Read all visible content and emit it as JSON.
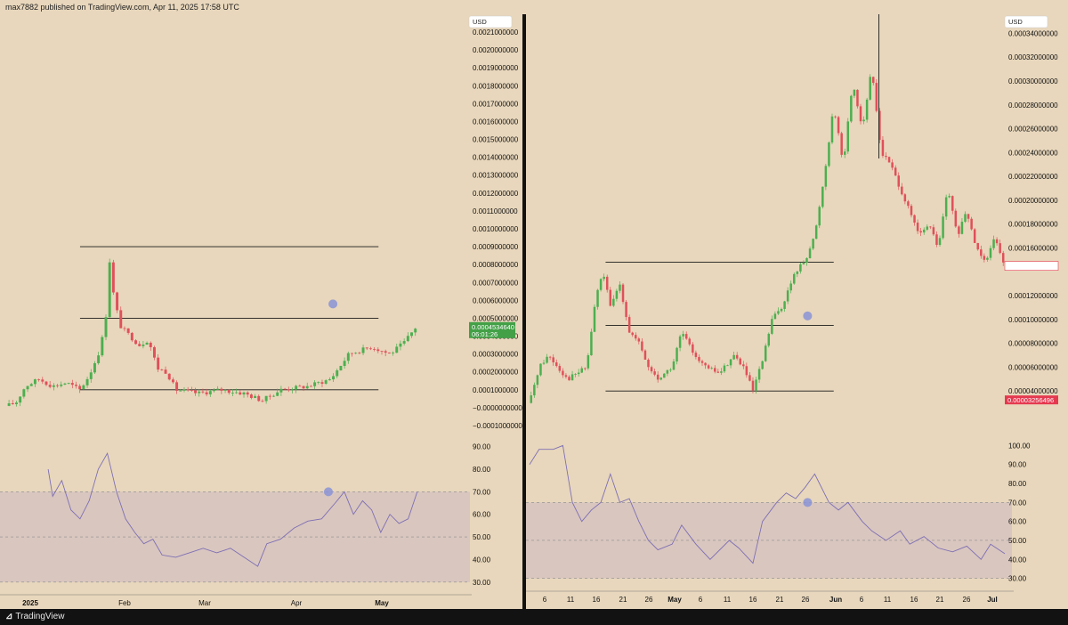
{
  "header": {
    "publisher": "max7882 published on TradingView.com, Apr 11, 2025 17:58 UTC"
  },
  "footer": {
    "brand": "TradingView",
    "brand_icon": "tradingview-logo-icon"
  },
  "colors": {
    "background": "#e8d7bc",
    "up": "#4caf50",
    "down": "#e0505a",
    "rsi_line": "#7e6fb4",
    "rsi_band": "#d7c4bf",
    "level_line": "#1a1a1a",
    "marker": "#8a93d6",
    "last_price_left": "#43a047",
    "last_price_right": "#e53950"
  },
  "chart_data": [
    {
      "type": "candlestick",
      "panel": "left",
      "currency_label": "USD",
      "price_ticks": [
        "0.0021000000",
        "0.0020000000",
        "0.0019000000",
        "0.0018000000",
        "0.0017000000",
        "0.0016000000",
        "0.0015000000",
        "0.0014000000",
        "0.0013000000",
        "0.0012000000",
        "0.0011000000",
        "0.0010000000",
        "0.0009000000",
        "0.0008000000",
        "0.0007000000",
        "0.0006000000",
        "0.0005000000",
        "0.0004000000",
        "0.0003000000",
        "0.0002000000",
        "0.0001000000",
        "−0.0000000000",
        "−0.0001000000"
      ],
      "y_range": [
        -0.0001,
        0.0021
      ],
      "x_ticks": [
        "2025",
        "Feb",
        "Mar",
        "Apr",
        "May"
      ],
      "last_price": {
        "value": "0.0004534640",
        "countdown": "06:01:26",
        "numeric": 0.000453464
      },
      "horizontal_levels": [
        0.0009,
        0.0005,
        0.0001
      ],
      "marker": {
        "price": 0.00058
      },
      "price_path": [
        {
          "t": 0,
          "p": 1e-05
        },
        {
          "t": 0.02,
          "p": 3e-05
        },
        {
          "t": 0.04,
          "p": 0.00012
        },
        {
          "t": 0.07,
          "p": 0.00016
        },
        {
          "t": 0.1,
          "p": 0.00012
        },
        {
          "t": 0.13,
          "p": 0.00014
        },
        {
          "t": 0.16,
          "p": 0.0001
        },
        {
          "t": 0.18,
          "p": 0.00018
        },
        {
          "t": 0.2,
          "p": 0.0003
        },
        {
          "t": 0.215,
          "p": 0.00045
        },
        {
          "t": 0.225,
          "p": 0.00082
        },
        {
          "t": 0.235,
          "p": 0.0006
        },
        {
          "t": 0.25,
          "p": 0.00045
        },
        {
          "t": 0.27,
          "p": 0.0004
        },
        {
          "t": 0.29,
          "p": 0.00035
        },
        {
          "t": 0.31,
          "p": 0.00038
        },
        {
          "t": 0.33,
          "p": 0.00022
        },
        {
          "t": 0.35,
          "p": 0.0002
        },
        {
          "t": 0.37,
          "p": 0.0001
        },
        {
          "t": 0.42,
          "p": 8e-05
        },
        {
          "t": 0.47,
          "p": 0.0001
        },
        {
          "t": 0.52,
          "p": 8e-05
        },
        {
          "t": 0.56,
          "p": 4e-05
        },
        {
          "t": 0.6,
          "p": 0.0001
        },
        {
          "t": 0.66,
          "p": 0.00012
        },
        {
          "t": 0.71,
          "p": 0.00016
        },
        {
          "t": 0.75,
          "p": 0.0003
        },
        {
          "t": 0.8,
          "p": 0.00034
        },
        {
          "t": 0.84,
          "p": 0.0003
        },
        {
          "t": 0.87,
          "p": 0.00036
        },
        {
          "t": 0.9,
          "p": 0.00046
        }
      ],
      "candle_count": 110,
      "candle_span": [
        0,
        0.9
      ],
      "rsi": {
        "ticks": [
          "90.00",
          "80.00",
          "70.00",
          "60.00",
          "50.00",
          "40.00",
          "30.00"
        ],
        "range": [
          26,
          93
        ],
        "band": [
          70,
          30
        ],
        "mid": 50,
        "marker_value": 70,
        "path": [
          {
            "t": 0.09,
            "v": 80
          },
          {
            "t": 0.1,
            "v": 68
          },
          {
            "t": 0.12,
            "v": 75
          },
          {
            "t": 0.14,
            "v": 62
          },
          {
            "t": 0.16,
            "v": 58
          },
          {
            "t": 0.18,
            "v": 66
          },
          {
            "t": 0.2,
            "v": 80
          },
          {
            "t": 0.22,
            "v": 87
          },
          {
            "t": 0.24,
            "v": 70
          },
          {
            "t": 0.26,
            "v": 58
          },
          {
            "t": 0.28,
            "v": 52
          },
          {
            "t": 0.3,
            "v": 47
          },
          {
            "t": 0.32,
            "v": 49
          },
          {
            "t": 0.34,
            "v": 42
          },
          {
            "t": 0.37,
            "v": 41
          },
          {
            "t": 0.4,
            "v": 43
          },
          {
            "t": 0.43,
            "v": 45
          },
          {
            "t": 0.46,
            "v": 43
          },
          {
            "t": 0.49,
            "v": 45
          },
          {
            "t": 0.52,
            "v": 41
          },
          {
            "t": 0.55,
            "v": 37
          },
          {
            "t": 0.57,
            "v": 47
          },
          {
            "t": 0.6,
            "v": 49
          },
          {
            "t": 0.63,
            "v": 54
          },
          {
            "t": 0.66,
            "v": 57
          },
          {
            "t": 0.69,
            "v": 58
          },
          {
            "t": 0.72,
            "v": 65
          },
          {
            "t": 0.74,
            "v": 70
          },
          {
            "t": 0.76,
            "v": 60
          },
          {
            "t": 0.78,
            "v": 66
          },
          {
            "t": 0.8,
            "v": 62
          },
          {
            "t": 0.82,
            "v": 52
          },
          {
            "t": 0.84,
            "v": 60
          },
          {
            "t": 0.86,
            "v": 56
          },
          {
            "t": 0.88,
            "v": 58
          },
          {
            "t": 0.9,
            "v": 70
          }
        ]
      }
    },
    {
      "type": "candlestick",
      "panel": "right",
      "currency_label": "USD",
      "price_ticks": [
        "0.00034000000",
        "0.00032000000",
        "0.00030000000",
        "0.00028000000",
        "0.00026000000",
        "0.00024000000",
        "0.00022000000",
        "0.00020000000",
        "0.00018000000",
        "0.00016000000",
        "0.00014494049",
        "0.00012000000",
        "0.00010000000",
        "0.00008000000",
        "0.00006000000",
        "0.00004000000",
        "0.00003256496"
      ],
      "y_range": [
        2e-05,
        0.00035
      ],
      "x_ticks": [
        "6",
        "11",
        "16",
        "21",
        "26",
        "May",
        "6",
        "11",
        "16",
        "21",
        "26",
        "Jun",
        "6",
        "11",
        "16",
        "21",
        "26",
        "Jul"
      ],
      "last_price": {
        "value": "0.00014494049",
        "numeric": 0.00014494049
      },
      "second_price": {
        "value": "0.00003256496",
        "numeric": 3.256496e-05
      },
      "horizontal_levels": [
        0.000148,
        9.5e-05,
        4e-05
      ],
      "marker": {
        "price": 0.000103
      },
      "price_path": [
        {
          "t": 0,
          "p": 3e-05
        },
        {
          "t": 0.02,
          "p": 6e-05
        },
        {
          "t": 0.04,
          "p": 7e-05
        },
        {
          "t": 0.06,
          "p": 6e-05
        },
        {
          "t": 0.08,
          "p": 5e-05
        },
        {
          "t": 0.1,
          "p": 5.5e-05
        },
        {
          "t": 0.12,
          "p": 6e-05
        },
        {
          "t": 0.14,
          "p": 0.00012
        },
        {
          "t": 0.155,
          "p": 0.00014
        },
        {
          "t": 0.17,
          "p": 0.00011
        },
        {
          "t": 0.19,
          "p": 0.00013
        },
        {
          "t": 0.21,
          "p": 9e-05
        },
        {
          "t": 0.23,
          "p": 8e-05
        },
        {
          "t": 0.25,
          "p": 6e-05
        },
        {
          "t": 0.27,
          "p": 5e-05
        },
        {
          "t": 0.3,
          "p": 6e-05
        },
        {
          "t": 0.32,
          "p": 9e-05
        },
        {
          "t": 0.34,
          "p": 7.5e-05
        },
        {
          "t": 0.37,
          "p": 6e-05
        },
        {
          "t": 0.4,
          "p": 5.5e-05
        },
        {
          "t": 0.43,
          "p": 7e-05
        },
        {
          "t": 0.45,
          "p": 6e-05
        },
        {
          "t": 0.47,
          "p": 4e-05
        },
        {
          "t": 0.49,
          "p": 6.5e-05
        },
        {
          "t": 0.51,
          "p": 0.0001
        },
        {
          "t": 0.53,
          "p": 0.00011
        },
        {
          "t": 0.56,
          "p": 0.00014
        },
        {
          "t": 0.58,
          "p": 0.00015
        },
        {
          "t": 0.6,
          "p": 0.00017
        },
        {
          "t": 0.62,
          "p": 0.00022
        },
        {
          "t": 0.64,
          "p": 0.00028
        },
        {
          "t": 0.66,
          "p": 0.00023
        },
        {
          "t": 0.68,
          "p": 0.0003
        },
        {
          "t": 0.7,
          "p": 0.00026
        },
        {
          "t": 0.72,
          "p": 0.00031
        },
        {
          "t": 0.74,
          "p": 0.00024
        },
        {
          "t": 0.76,
          "p": 0.00023
        },
        {
          "t": 0.78,
          "p": 0.00021
        },
        {
          "t": 0.8,
          "p": 0.00019
        },
        {
          "t": 0.82,
          "p": 0.00017
        },
        {
          "t": 0.84,
          "p": 0.00018
        },
        {
          "t": 0.86,
          "p": 0.00016
        },
        {
          "t": 0.88,
          "p": 0.00021
        },
        {
          "t": 0.9,
          "p": 0.00017
        },
        {
          "t": 0.92,
          "p": 0.00019
        },
        {
          "t": 0.94,
          "p": 0.00016
        },
        {
          "t": 0.96,
          "p": 0.00015
        },
        {
          "t": 0.98,
          "p": 0.00017
        },
        {
          "t": 1.0,
          "p": 0.000145
        }
      ],
      "candle_count": 150,
      "candle_span": [
        0,
        1.0
      ],
      "rsi": {
        "ticks": [
          "100.00",
          "90.00",
          "80.00",
          "70.00",
          "60.00",
          "50.00",
          "40.00",
          "30.00"
        ],
        "range": [
          27,
          103
        ],
        "band": [
          70,
          30
        ],
        "mid": 50,
        "marker_value": 70,
        "path": [
          {
            "t": 0,
            "v": 90
          },
          {
            "t": 0.02,
            "v": 98
          },
          {
            "t": 0.05,
            "v": 98
          },
          {
            "t": 0.07,
            "v": 100
          },
          {
            "t": 0.09,
            "v": 70
          },
          {
            "t": 0.11,
            "v": 60
          },
          {
            "t": 0.13,
            "v": 66
          },
          {
            "t": 0.15,
            "v": 70
          },
          {
            "t": 0.17,
            "v": 85
          },
          {
            "t": 0.19,
            "v": 70
          },
          {
            "t": 0.21,
            "v": 72
          },
          {
            "t": 0.23,
            "v": 60
          },
          {
            "t": 0.25,
            "v": 50
          },
          {
            "t": 0.27,
            "v": 45
          },
          {
            "t": 0.3,
            "v": 48
          },
          {
            "t": 0.32,
            "v": 58
          },
          {
            "t": 0.35,
            "v": 48
          },
          {
            "t": 0.38,
            "v": 40
          },
          {
            "t": 0.42,
            "v": 50
          },
          {
            "t": 0.44,
            "v": 46
          },
          {
            "t": 0.47,
            "v": 38
          },
          {
            "t": 0.49,
            "v": 60
          },
          {
            "t": 0.52,
            "v": 70
          },
          {
            "t": 0.54,
            "v": 75
          },
          {
            "t": 0.56,
            "v": 72
          },
          {
            "t": 0.58,
            "v": 78
          },
          {
            "t": 0.6,
            "v": 85
          },
          {
            "t": 0.63,
            "v": 70
          },
          {
            "t": 0.65,
            "v": 66
          },
          {
            "t": 0.67,
            "v": 70
          },
          {
            "t": 0.7,
            "v": 60
          },
          {
            "t": 0.72,
            "v": 55
          },
          {
            "t": 0.75,
            "v": 50
          },
          {
            "t": 0.78,
            "v": 55
          },
          {
            "t": 0.8,
            "v": 48
          },
          {
            "t": 0.83,
            "v": 52
          },
          {
            "t": 0.86,
            "v": 46
          },
          {
            "t": 0.89,
            "v": 44
          },
          {
            "t": 0.92,
            "v": 47
          },
          {
            "t": 0.95,
            "v": 40
          },
          {
            "t": 0.97,
            "v": 48
          },
          {
            "t": 1.0,
            "v": 43
          }
        ]
      }
    }
  ]
}
